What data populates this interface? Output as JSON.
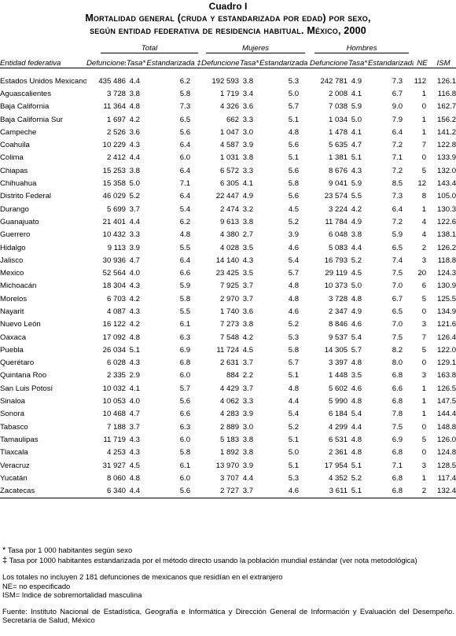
{
  "title": {
    "line1": "Cuadro I",
    "line2": "Mortalidad general (cruda y estandarizada por edad) por sexo,",
    "line3": "según entidad federativa de residencia habitual. México, 2000"
  },
  "groups": {
    "total": "Total",
    "mujeres": "Mujeres",
    "hombres": "Hombres"
  },
  "columns": {
    "entidad": "Entidad federativa",
    "defunciones": "Defunciones",
    "tasa": "Tasa*",
    "estandarizada": "Estandarizada ‡",
    "ne": "NE",
    "ism": "ISM"
  },
  "rows": [
    [
      "Estados Unidos Mexicanos",
      "435 486",
      "4.4",
      "6.2",
      "192 593",
      "3.8",
      "5.3",
      "242 781",
      "4.9",
      "7.3",
      "112",
      "126.1"
    ],
    [
      "Aguascalientes",
      "3 728",
      "3.8",
      "5.8",
      "1 719",
      "3.4",
      "5.0",
      "2 008",
      "4.1",
      "6.7",
      "1",
      "116.8"
    ],
    [
      "Baja California",
      "11 364",
      "4.8",
      "7.3",
      "4 326",
      "3.6",
      "5.7",
      "7 038",
      "5.9",
      "9.0",
      "0",
      "162.7"
    ],
    [
      "Baja California Sur",
      "1 697",
      "4.2",
      "6.5",
      "662",
      "3.3",
      "5.1",
      "1 034",
      "5.0",
      "7.9",
      "1",
      "156.2"
    ],
    [
      "Campeche",
      "2 526",
      "3.6",
      "5.6",
      "1 047",
      "3.0",
      "4.8",
      "1 478",
      "4.1",
      "6.4",
      "1",
      "141.2"
    ],
    [
      "Coahuila",
      "10 229",
      "4.3",
      "6.4",
      "4 587",
      "3.9",
      "5.6",
      "5 635",
      "4.7",
      "7.2",
      "7",
      "122.8"
    ],
    [
      "Colima",
      "2 412",
      "4.4",
      "6.0",
      "1 031",
      "3.8",
      "5.1",
      "1 381",
      "5.1",
      "7.1",
      "0",
      "133.9"
    ],
    [
      "Chiapas",
      "15 253",
      "3.8",
      "6.4",
      "6 572",
      "3.3",
      "5.6",
      "8 676",
      "4.3",
      "7.2",
      "5",
      "132.0"
    ],
    [
      "Chihuahua",
      "15 358",
      "5.0",
      "7.1",
      "6 305",
      "4.1",
      "5.8",
      "9 041",
      "5.9",
      "8.5",
      "12",
      "143.4"
    ],
    [
      "Distrito Federal",
      "46 029",
      "5.2",
      "6.4",
      "22 447",
      "4.9",
      "5.6",
      "23 574",
      "5.5",
      "7.3",
      "8",
      "105.0"
    ],
    [
      "Durango",
      "5 699",
      "3.7",
      "5.4",
      "2 474",
      "3.2",
      "4.5",
      "3 224",
      "4.2",
      "6.4",
      "1",
      "130.3"
    ],
    [
      "Guanajuato",
      "21 401",
      "4.4",
      "6.2",
      "9 613",
      "3.8",
      "5.2",
      "11 784",
      "4.9",
      "7.2",
      "4",
      "122.6"
    ],
    [
      "Guerrero",
      "10 432",
      "3.3",
      "4.8",
      "4 380",
      "2.7",
      "3.9",
      "6 048",
      "3.8",
      "5.9",
      "4",
      "138.1"
    ],
    [
      "Hidalgo",
      "9 113",
      "3.9",
      "5.5",
      "4 028",
      "3.5",
      "4.6",
      "5 083",
      "4.4",
      "6.5",
      "2",
      "126.2"
    ],
    [
      "Jalisco",
      "30 936",
      "4.7",
      "6.4",
      "14 140",
      "4.3",
      "5.4",
      "16 793",
      "5.2",
      "7.4",
      "3",
      "118.8"
    ],
    [
      "Mexico",
      "52 564",
      "4.0",
      "6.6",
      "23 425",
      "3.5",
      "5.7",
      "29 119",
      "4.5",
      "7.5",
      "20",
      "124.3"
    ],
    [
      "Michoacán",
      "18 304",
      "4.3",
      "5.9",
      "7 925",
      "3.7",
      "4.8",
      "10 373",
      "5.0",
      "7.0",
      "6",
      "130.9"
    ],
    [
      "Morelos",
      "6 703",
      "4.2",
      "5.8",
      "2 970",
      "3.7",
      "4.8",
      "3 728",
      "4.8",
      "6.7",
      "5",
      "125.5"
    ],
    [
      "Nayarit",
      "4 087",
      "4.3",
      "5.5",
      "1 740",
      "3.6",
      "4.6",
      "2 347",
      "4.9",
      "6.5",
      "0",
      "134.9"
    ],
    [
      "Nuevo León",
      "16 122",
      "4.2",
      "6.1",
      "7 273",
      "3.8",
      "5.2",
      "8 846",
      "4.6",
      "7.0",
      "3",
      "121.6"
    ],
    [
      "Oaxaca",
      "17 092",
      "4.8",
      "6.3",
      "7 548",
      "4.2",
      "5.3",
      "9 537",
      "5.4",
      "7.5",
      "7",
      "126.4"
    ],
    [
      "Puebla",
      "26 034",
      "5.1",
      "6.9",
      "11 724",
      "4.5",
      "5.8",
      "14 305",
      "5.7",
      "8.2",
      "5",
      "122.0"
    ],
    [
      "Querétaro",
      "6 028",
      "4.3",
      "6.8",
      "2 631",
      "3.7",
      "5.7",
      "3 397",
      "4.8",
      "8.0",
      "0",
      "129.1"
    ],
    [
      "Quintana Roo",
      "2 335",
      "2.9",
      "6.0",
      "884",
      "2.2",
      "5.1",
      "1 448",
      "3.5",
      "6.8",
      "3",
      "163.8"
    ],
    [
      "San Luis Potosí",
      "10 032",
      "4.1",
      "5.7",
      "4 429",
      "3.7",
      "4.8",
      "5 602",
      "4.6",
      "6.6",
      "1",
      "126.5"
    ],
    [
      "Sinaloa",
      "10 053",
      "4.0",
      "5.6",
      "4 062",
      "3.3",
      "4.4",
      "5 990",
      "4.8",
      "6.8",
      "1",
      "147.5"
    ],
    [
      "Sonora",
      "10 468",
      "4.7",
      "6.6",
      "4 283",
      "3.9",
      "5.4",
      "6 184",
      "5.4",
      "7.8",
      "1",
      "144.4"
    ],
    [
      "Tabasco",
      "7 188",
      "3.7",
      "6.3",
      "2 889",
      "3.0",
      "5.2",
      "4 299",
      "4.4",
      "7.5",
      "0",
      "148.8"
    ],
    [
      "Tamaulipas",
      "11 719",
      "4.3",
      "6.0",
      "5 183",
      "3.8",
      "5.1",
      "6 531",
      "4.8",
      "6.9",
      "5",
      "126.0"
    ],
    [
      "Tlaxcala",
      "4 253",
      "4.3",
      "5.8",
      "1 892",
      "3.8",
      "5.0",
      "2 361",
      "4.8",
      "6.8",
      "0",
      "124.8"
    ],
    [
      "Veracruz",
      "31 927",
      "4.5",
      "6.1",
      "13 970",
      "3.9",
      "5.1",
      "17 954",
      "5.1",
      "7.1",
      "3",
      "128.5"
    ],
    [
      "Yucatán",
      "8 060",
      "4.8",
      "6.0",
      "3 707",
      "4.4",
      "5.3",
      "4 352",
      "5.2",
      "6.8",
      "1",
      "117.4"
    ],
    [
      "Zacatecas",
      "6 340",
      "4.4",
      "5.6",
      "2 727",
      "3.7",
      "4.6",
      "3 611",
      "5.1",
      "6.8",
      "2",
      "132.4"
    ]
  ],
  "notes": {
    "tasa_mark": "*",
    "tasa_note": "Tasa por 1 000 habitantes según sexo",
    "est_mark": "‡",
    "est_note": "Tasa por 1000 habitantes estandarizada por el método directo usando la población mundial estándar (ver nota metodológica)",
    "totales": "Los totales no incluyen 2 181 defunciones de mexicanos que residían en el extranjero",
    "ne": "NE= no especificado",
    "ism": "ISM= Indice de sobremortalidad masculina",
    "fuente": "Fuente: Instituto Nacional de Estadística, Geografía e Informática y Dirección General de Información y Evaluación del Desempeño. Secretaría de Salud, México"
  }
}
